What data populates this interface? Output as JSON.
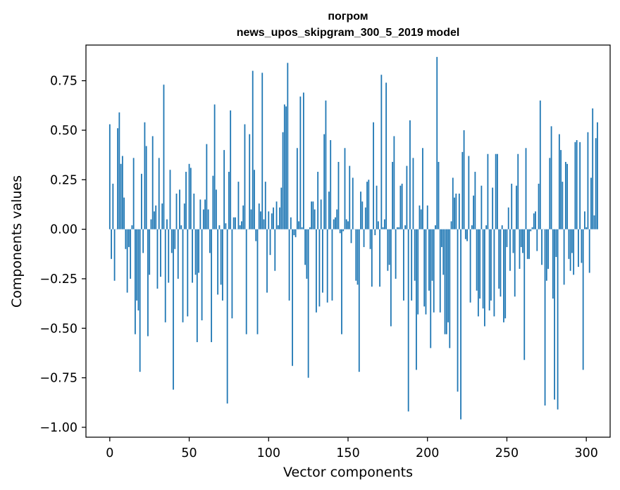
{
  "chart_data": {
    "type": "bar",
    "title_line1": "погром",
    "title_line2": "news_upos_skipgram_300_5_2019 model",
    "xlabel": "Vector components",
    "ylabel": "Components values",
    "xlim": [
      -15,
      315
    ],
    "ylim": [
      -1.05,
      0.93
    ],
    "xticks": [
      0,
      50,
      100,
      150,
      200,
      250,
      300
    ],
    "xtick_labels": [
      "0",
      "50",
      "100",
      "150",
      "200",
      "250",
      "300"
    ],
    "yticks": [
      -1.0,
      -0.75,
      -0.5,
      -0.25,
      0.0,
      0.25,
      0.5,
      0.75
    ],
    "ytick_labels": [
      "−1.00",
      "−0.75",
      "−0.50",
      "−0.25",
      "0.00",
      "0.25",
      "0.50",
      "0.75"
    ],
    "bar_color": "#1f77b4",
    "values": [
      0.53,
      -0.15,
      0.23,
      -0.26,
      0.0,
      0.51,
      0.59,
      0.33,
      0.37,
      0.16,
      -0.1,
      -0.32,
      -0.09,
      -0.25,
      0.02,
      0.36,
      -0.53,
      -0.36,
      -0.41,
      -0.72,
      0.28,
      -0.12,
      0.54,
      0.42,
      -0.54,
      -0.23,
      0.05,
      0.47,
      0.09,
      0.12,
      -0.3,
      0.36,
      -0.24,
      0.13,
      0.73,
      -0.47,
      0.05,
      -0.27,
      0.3,
      -0.12,
      -0.81,
      -0.1,
      0.18,
      -0.25,
      0.2,
      0.02,
      -0.47,
      0.13,
      0.29,
      -0.44,
      0.33,
      0.31,
      -0.27,
      0.18,
      -0.23,
      -0.57,
      -0.22,
      0.15,
      -0.46,
      0.1,
      0.15,
      0.43,
      0.1,
      -0.12,
      -0.57,
      0.27,
      0.63,
      0.2,
      -0.33,
      0.02,
      -0.28,
      -0.36,
      0.4,
      0.03,
      -0.88,
      0.29,
      0.6,
      -0.45,
      0.06,
      0.06,
      0.0,
      0.24,
      0.02,
      0.04,
      0.12,
      0.53,
      -0.53,
      0.0,
      0.48,
      0.1,
      0.8,
      0.3,
      -0.06,
      -0.53,
      0.13,
      0.09,
      0.79,
      0.05,
      0.24,
      -0.32,
      0.09,
      -0.13,
      0.08,
      0.11,
      -0.21,
      0.14,
      0.02,
      0.11,
      0.21,
      0.49,
      0.63,
      0.62,
      0.84,
      -0.36,
      0.06,
      -0.69,
      -0.03,
      -0.04,
      0.41,
      0.04,
      0.67,
      0.01,
      0.69,
      -0.18,
      -0.25,
      -0.75,
      0.01,
      0.14,
      0.14,
      0.1,
      -0.42,
      0.29,
      -0.39,
      0.15,
      -0.32,
      0.48,
      0.65,
      -0.37,
      0.19,
      0.45,
      -0.36,
      0.05,
      0.06,
      0.1,
      0.34,
      -0.02,
      -0.53,
      -0.01,
      0.41,
      0.05,
      0.04,
      0.32,
      -0.07,
      0.26,
      0.0,
      -0.26,
      -0.28,
      -0.72,
      0.19,
      0.14,
      -0.09,
      0.11,
      0.24,
      0.25,
      -0.1,
      -0.29,
      0.54,
      -0.03,
      0.22,
      0.04,
      -0.29,
      0.78,
      0.01,
      0.05,
      0.74,
      -0.21,
      -0.18,
      -0.49,
      0.34,
      0.47,
      -0.25,
      0.01,
      0.01,
      0.22,
      0.23,
      -0.36,
      0.02,
      0.32,
      -0.92,
      0.55,
      -0.36,
      0.36,
      -0.26,
      -0.71,
      -0.43,
      0.12,
      0.1,
      0.41,
      -0.39,
      -0.43,
      0.12,
      -0.31,
      -0.6,
      -0.26,
      -0.42,
      0.02,
      0.87,
      0.34,
      -0.42,
      -0.09,
      -0.23,
      -0.53,
      -0.53,
      -0.47,
      -0.6,
      0.04,
      0.26,
      0.16,
      0.18,
      -0.82,
      0.18,
      -0.96,
      0.39,
      0.5,
      -0.05,
      -0.06,
      0.37,
      -0.37,
      0.02,
      0.17,
      0.29,
      -0.31,
      -0.44,
      -0.35,
      0.22,
      -0.4,
      -0.49,
      0.02,
      0.38,
      -0.41,
      -0.36,
      0.21,
      -0.44,
      0.38,
      0.38,
      -0.3,
      -0.34,
      0.02,
      -0.47,
      -0.45,
      -0.09,
      0.11,
      -0.21,
      0.23,
      -0.12,
      -0.34,
      0.22,
      0.38,
      -0.2,
      -0.09,
      -0.12,
      -0.66,
      0.41,
      -0.15,
      -0.15,
      -0.01,
      0.01,
      0.08,
      0.09,
      -0.11,
      0.23,
      0.65,
      -0.18,
      0.0,
      -0.89,
      -0.26,
      -0.2,
      0.36,
      0.52,
      -0.35,
      -0.86,
      -0.14,
      -0.91,
      0.48,
      0.4,
      0.24,
      -0.28,
      0.34,
      0.33,
      -0.15,
      -0.21,
      -0.12,
      -0.23,
      0.44,
      0.45,
      -0.19,
      0.44,
      -0.17,
      -0.71,
      0.09,
      0.01,
      0.49,
      -0.22,
      0.26,
      0.61,
      0.07,
      0.46,
      0.54
    ]
  }
}
